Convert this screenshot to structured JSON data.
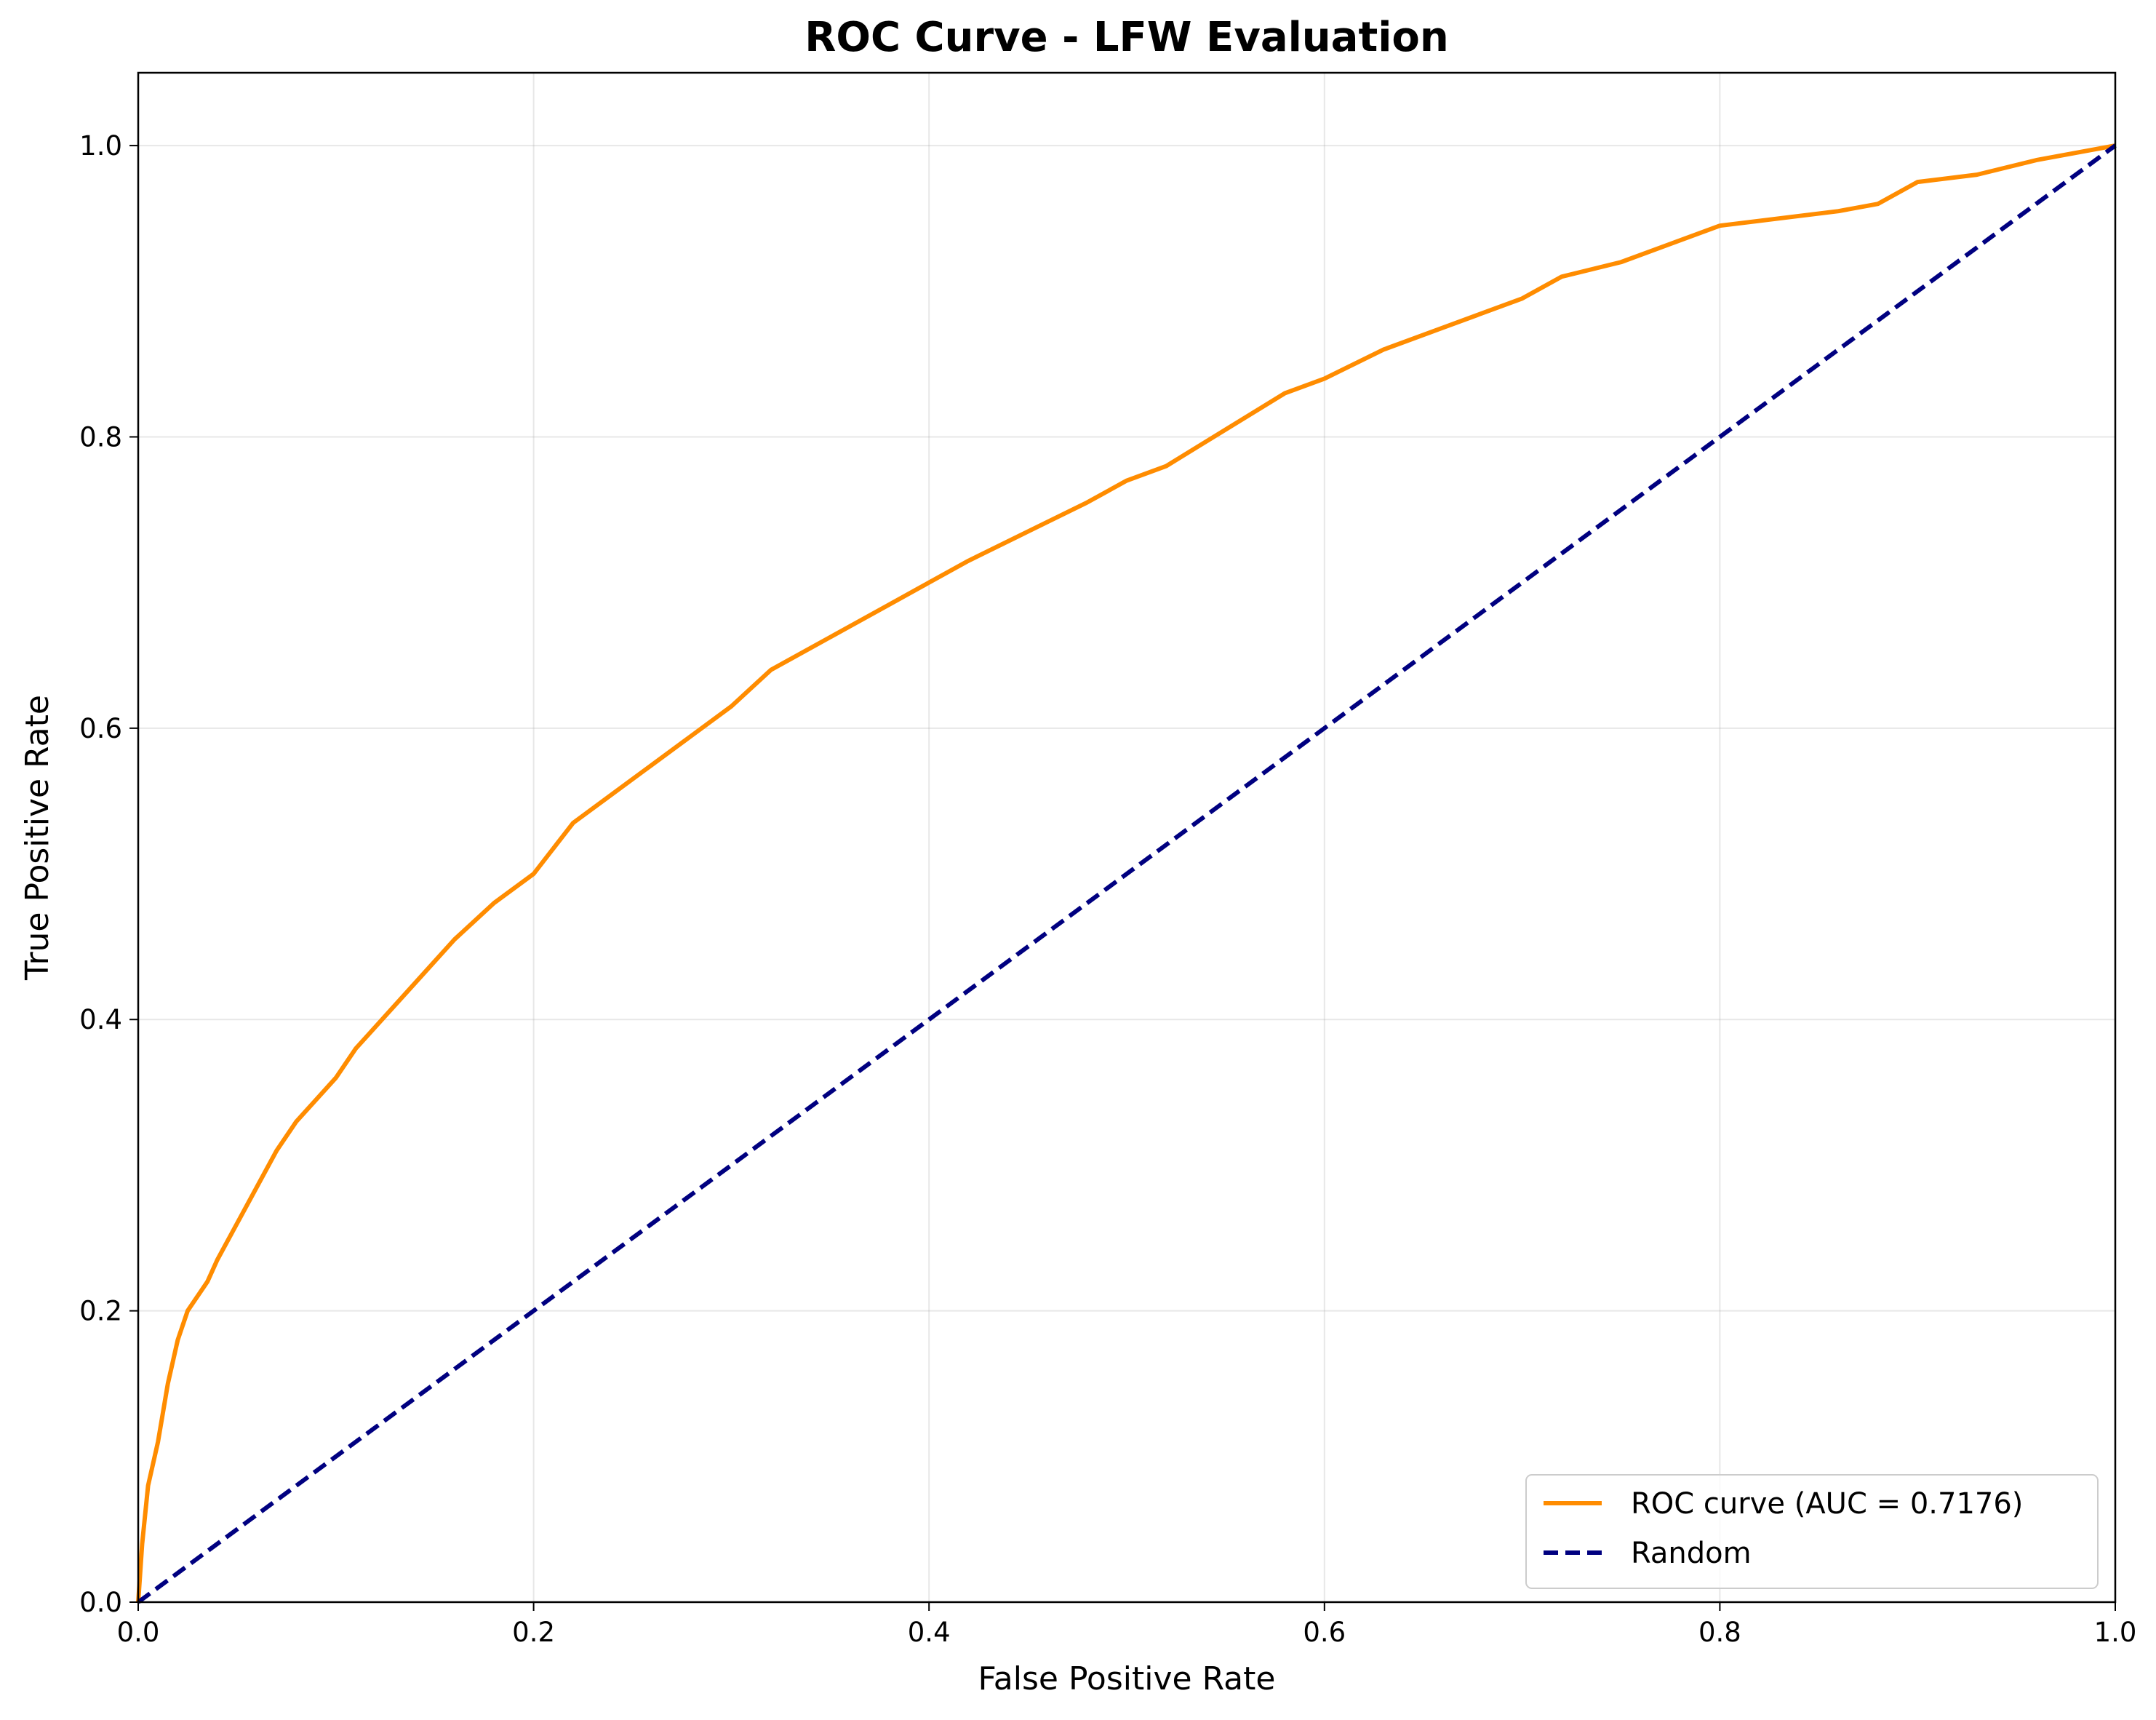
{
  "chart_data": {
    "type": "line",
    "title": "ROC Curve - LFW Evaluation",
    "xlabel": "False Positive Rate",
    "ylabel": "True Positive Rate",
    "xlim": [
      0.0,
      1.0
    ],
    "ylim": [
      0.0,
      1.05
    ],
    "xticks": [
      0.0,
      0.2,
      0.4,
      0.6,
      0.8,
      1.0
    ],
    "yticks": [
      0.0,
      0.2,
      0.4,
      0.6,
      0.8,
      1.0
    ],
    "xtick_labels": [
      "0.0",
      "0.2",
      "0.4",
      "0.6",
      "0.8",
      "1.0"
    ],
    "ytick_labels": [
      "0.0",
      "0.2",
      "0.4",
      "0.6",
      "0.8",
      "1.0"
    ],
    "grid": true,
    "legend_position": "lower-right",
    "series": [
      {
        "name": "ROC curve (AUC = 0.7176)",
        "color": "#ff8c00",
        "style": "solid",
        "x": [
          0.0,
          0.002,
          0.005,
          0.01,
          0.015,
          0.02,
          0.025,
          0.03,
          0.035,
          0.04,
          0.05,
          0.06,
          0.07,
          0.08,
          0.09,
          0.1,
          0.11,
          0.12,
          0.14,
          0.16,
          0.18,
          0.2,
          0.22,
          0.24,
          0.26,
          0.28,
          0.3,
          0.32,
          0.34,
          0.36,
          0.38,
          0.4,
          0.42,
          0.45,
          0.48,
          0.5,
          0.52,
          0.55,
          0.58,
          0.6,
          0.63,
          0.66,
          0.7,
          0.72,
          0.75,
          0.78,
          0.8,
          0.83,
          0.86,
          0.88,
          0.9,
          0.93,
          0.96,
          0.98,
          1.0
        ],
        "y": [
          0.0,
          0.04,
          0.08,
          0.11,
          0.15,
          0.18,
          0.2,
          0.21,
          0.22,
          0.235,
          0.26,
          0.285,
          0.31,
          0.33,
          0.345,
          0.36,
          0.38,
          0.395,
          0.425,
          0.455,
          0.48,
          0.5,
          0.535,
          0.555,
          0.575,
          0.595,
          0.615,
          0.64,
          0.655,
          0.67,
          0.685,
          0.7,
          0.715,
          0.735,
          0.755,
          0.77,
          0.78,
          0.805,
          0.83,
          0.84,
          0.86,
          0.875,
          0.895,
          0.91,
          0.92,
          0.935,
          0.945,
          0.95,
          0.955,
          0.96,
          0.975,
          0.98,
          0.99,
          0.995,
          1.0
        ]
      },
      {
        "name": "Random",
        "color": "#000080",
        "style": "dashed",
        "x": [
          0.0,
          1.0
        ],
        "y": [
          0.0,
          1.0
        ]
      }
    ]
  }
}
